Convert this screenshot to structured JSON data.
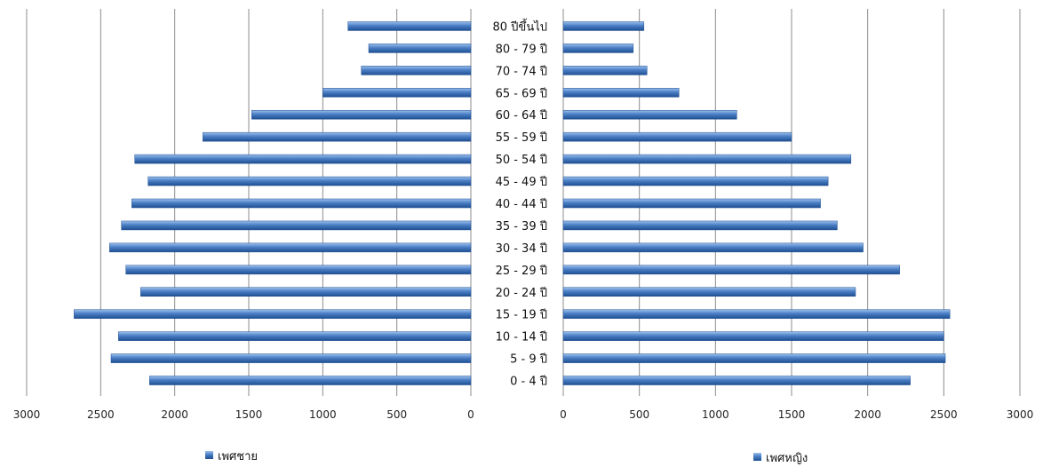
{
  "chart_data": {
    "type": "bar",
    "orientation": "horizontal-butterfly",
    "categories": [
      "0 - 4 ปี",
      "5 - 9 ปี",
      "10 - 14 ปี",
      "15 - 19 ปี",
      "20 - 24 ปี",
      "25 - 29 ปี",
      "30 - 34 ปี",
      "35 - 39 ปี",
      "40 - 44 ปี",
      "45 - 49 ปี",
      "50 - 54 ปี",
      "55 - 59 ปี",
      "60 - 64 ปี",
      "65 - 69 ปี",
      "70 - 74 ปี",
      "80 - 79 ปี",
      "80 ปีขึ้นไป"
    ],
    "series": [
      {
        "name": "เพศชาย",
        "side": "left",
        "color": "#4a7ec4",
        "values": [
          2170,
          2430,
          2380,
          2680,
          2230,
          2330,
          2440,
          2360,
          2290,
          2180,
          2270,
          1810,
          1480,
          1000,
          740,
          690,
          830
        ]
      },
      {
        "name": "เพศหญิง",
        "side": "right",
        "color": "#4a7ec4",
        "values": [
          2280,
          2510,
          2500,
          2540,
          1920,
          2210,
          1970,
          1800,
          1690,
          1740,
          1890,
          1500,
          1140,
          760,
          550,
          460,
          530
        ]
      }
    ],
    "xlim": [
      0,
      3000
    ],
    "ticks": [
      "3000",
      "2500",
      "2000",
      "1500",
      "1000",
      "500",
      "0"
    ],
    "ticks_right": [
      "0",
      "500",
      "1000",
      "1500",
      "2000",
      "2500",
      "3000"
    ],
    "grid": "vertical",
    "legend": "bottom",
    "title": "",
    "xlabel": "",
    "ylabel": ""
  }
}
